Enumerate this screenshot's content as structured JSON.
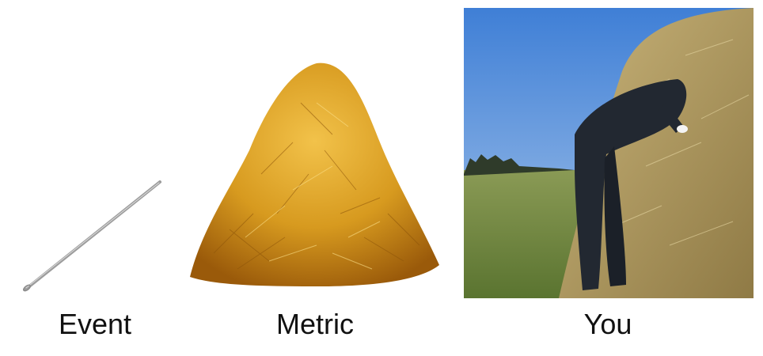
{
  "captions": {
    "event": "Event",
    "metric": "Metric",
    "you": "You"
  },
  "colors": {
    "needle": "#a9a9a9",
    "hay_light": "#f2c24a",
    "hay_mid": "#d79a1f",
    "hay_dark": "#9a5a0a",
    "sky": "#5c95dc",
    "field": "#6e8a3c",
    "suit": "#222831"
  }
}
